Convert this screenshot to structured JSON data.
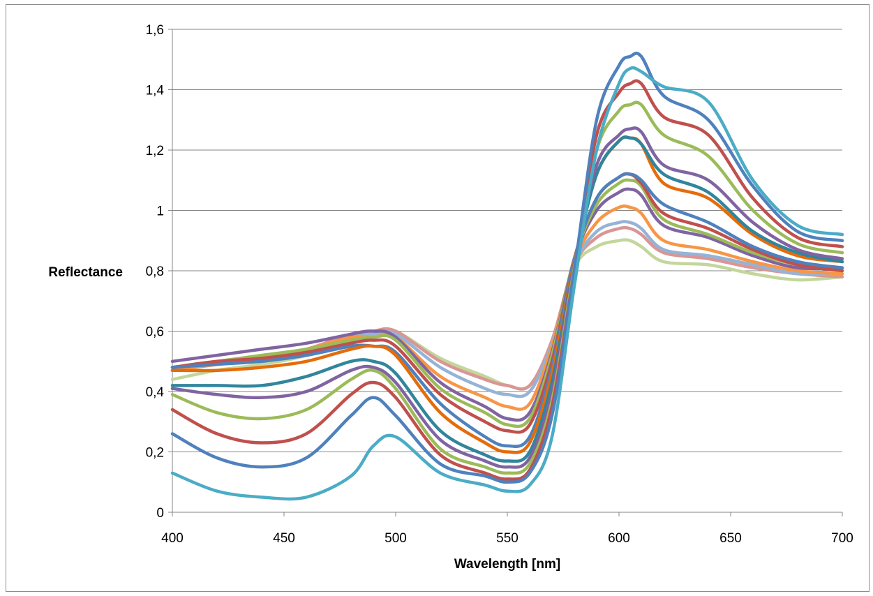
{
  "chart_data": {
    "type": "line",
    "xlabel": "Wavelength [nm]",
    "ylabel": "Reflectance",
    "xlim": [
      400,
      700
    ],
    "ylim": [
      0,
      1.6
    ],
    "x_ticks": [
      {
        "value": 400,
        "label": "400"
      },
      {
        "value": 450,
        "label": "450"
      },
      {
        "value": 500,
        "label": "500"
      },
      {
        "value": 550,
        "label": "550"
      },
      {
        "value": 600,
        "label": "600"
      },
      {
        "value": 650,
        "label": "650"
      },
      {
        "value": 700,
        "label": "700"
      }
    ],
    "y_ticks": [
      {
        "value": 0,
        "label": "0"
      },
      {
        "value": 0.2,
        "label": "0,2"
      },
      {
        "value": 0.4,
        "label": "0,4"
      },
      {
        "value": 0.6,
        "label": "0,6"
      },
      {
        "value": 0.8,
        "label": "0,8"
      },
      {
        "value": 1.0,
        "label": "1"
      },
      {
        "value": 1.2,
        "label": "1,2"
      },
      {
        "value": 1.4,
        "label": "1,4"
      },
      {
        "value": 1.6,
        "label": "1,6"
      }
    ],
    "grid": "horizontal",
    "legend": "none",
    "x": [
      400,
      420,
      440,
      460,
      480,
      490,
      500,
      520,
      540,
      550,
      560,
      570,
      580,
      590,
      600,
      605,
      610,
      620,
      640,
      660,
      680,
      700
    ],
    "series": [
      {
        "color": "#4BACC6",
        "values": [
          0.13,
          0.07,
          0.05,
          0.05,
          0.12,
          0.22,
          0.25,
          0.13,
          0.09,
          0.07,
          0.09,
          0.25,
          0.75,
          1.2,
          1.42,
          1.47,
          1.46,
          1.41,
          1.36,
          1.1,
          0.95,
          0.92
        ]
      },
      {
        "color": "#4F81BD",
        "values": [
          0.26,
          0.18,
          0.15,
          0.18,
          0.32,
          0.38,
          0.32,
          0.16,
          0.12,
          0.1,
          0.13,
          0.32,
          0.8,
          1.3,
          1.48,
          1.51,
          1.51,
          1.38,
          1.3,
          1.08,
          0.93,
          0.9
        ]
      },
      {
        "color": "#C0504D",
        "values": [
          0.34,
          0.26,
          0.23,
          0.26,
          0.39,
          0.43,
          0.38,
          0.19,
          0.13,
          0.11,
          0.14,
          0.35,
          0.8,
          1.25,
          1.39,
          1.42,
          1.42,
          1.31,
          1.25,
          1.04,
          0.91,
          0.88
        ]
      },
      {
        "color": "#9BBB59",
        "values": [
          0.39,
          0.33,
          0.31,
          0.34,
          0.44,
          0.47,
          0.41,
          0.21,
          0.15,
          0.13,
          0.16,
          0.37,
          0.81,
          1.2,
          1.33,
          1.35,
          1.35,
          1.25,
          1.18,
          1.0,
          0.89,
          0.86
        ]
      },
      {
        "color": "#8064A2",
        "values": [
          0.41,
          0.39,
          0.38,
          0.4,
          0.47,
          0.48,
          0.43,
          0.24,
          0.17,
          0.15,
          0.18,
          0.4,
          0.82,
          1.15,
          1.25,
          1.27,
          1.26,
          1.15,
          1.1,
          0.96,
          0.87,
          0.84
        ]
      },
      {
        "color": "#31859C",
        "values": [
          0.42,
          0.42,
          0.42,
          0.45,
          0.5,
          0.5,
          0.46,
          0.27,
          0.19,
          0.17,
          0.2,
          0.43,
          0.82,
          1.12,
          1.23,
          1.24,
          1.22,
          1.12,
          1.06,
          0.93,
          0.86,
          0.83
        ]
      },
      {
        "color": "#E46C0A",
        "values": [
          0.47,
          0.47,
          0.48,
          0.5,
          0.54,
          0.55,
          0.52,
          0.33,
          0.23,
          0.2,
          0.23,
          0.46,
          0.83,
          1.12,
          1.23,
          1.24,
          1.22,
          1.09,
          1.04,
          0.92,
          0.85,
          0.83
        ]
      },
      {
        "color": "#4F81BD",
        "values": [
          0.48,
          0.49,
          0.5,
          0.52,
          0.55,
          0.55,
          0.53,
          0.36,
          0.25,
          0.22,
          0.25,
          0.48,
          0.84,
          1.04,
          1.11,
          1.12,
          1.1,
          1.02,
          0.96,
          0.88,
          0.83,
          0.81
        ]
      },
      {
        "color": "#C0504D",
        "values": [
          0.48,
          0.5,
          0.51,
          0.53,
          0.56,
          0.57,
          0.55,
          0.39,
          0.3,
          0.27,
          0.29,
          0.5,
          0.84,
          1.04,
          1.11,
          1.12,
          1.09,
          0.99,
          0.94,
          0.87,
          0.82,
          0.8
        ]
      },
      {
        "color": "#9BBB59",
        "values": [
          0.48,
          0.5,
          0.52,
          0.54,
          0.57,
          0.58,
          0.57,
          0.41,
          0.33,
          0.29,
          0.31,
          0.52,
          0.84,
          1.02,
          1.09,
          1.1,
          1.08,
          0.97,
          0.92,
          0.86,
          0.82,
          0.8
        ]
      },
      {
        "color": "#8064A2",
        "values": [
          0.5,
          0.52,
          0.54,
          0.56,
          0.59,
          0.6,
          0.58,
          0.43,
          0.35,
          0.31,
          0.33,
          0.53,
          0.84,
          1.0,
          1.06,
          1.07,
          1.05,
          0.95,
          0.91,
          0.85,
          0.81,
          0.81
        ]
      },
      {
        "color": "#F79646",
        "values": [
          0.47,
          0.49,
          0.51,
          0.54,
          0.58,
          0.58,
          0.58,
          0.45,
          0.38,
          0.35,
          0.36,
          0.55,
          0.83,
          0.96,
          1.01,
          1.01,
          0.99,
          0.9,
          0.87,
          0.83,
          0.8,
          0.79
        ]
      },
      {
        "color": "#95B3D7",
        "values": [
          0.47,
          0.49,
          0.51,
          0.54,
          0.58,
          0.59,
          0.59,
          0.48,
          0.41,
          0.39,
          0.4,
          0.56,
          0.82,
          0.93,
          0.96,
          0.96,
          0.94,
          0.87,
          0.85,
          0.82,
          0.79,
          0.79
        ]
      },
      {
        "color": "#D99694",
        "values": [
          0.47,
          0.49,
          0.51,
          0.54,
          0.59,
          0.6,
          0.6,
          0.5,
          0.44,
          0.42,
          0.42,
          0.57,
          0.82,
          0.91,
          0.94,
          0.94,
          0.92,
          0.86,
          0.84,
          0.81,
          0.79,
          0.78
        ]
      },
      {
        "color": "#C3D69B",
        "values": [
          0.44,
          0.47,
          0.49,
          0.52,
          0.58,
          0.6,
          0.6,
          0.51,
          0.45,
          0.42,
          0.42,
          0.56,
          0.81,
          0.88,
          0.9,
          0.9,
          0.88,
          0.83,
          0.82,
          0.79,
          0.77,
          0.78
        ]
      }
    ]
  }
}
